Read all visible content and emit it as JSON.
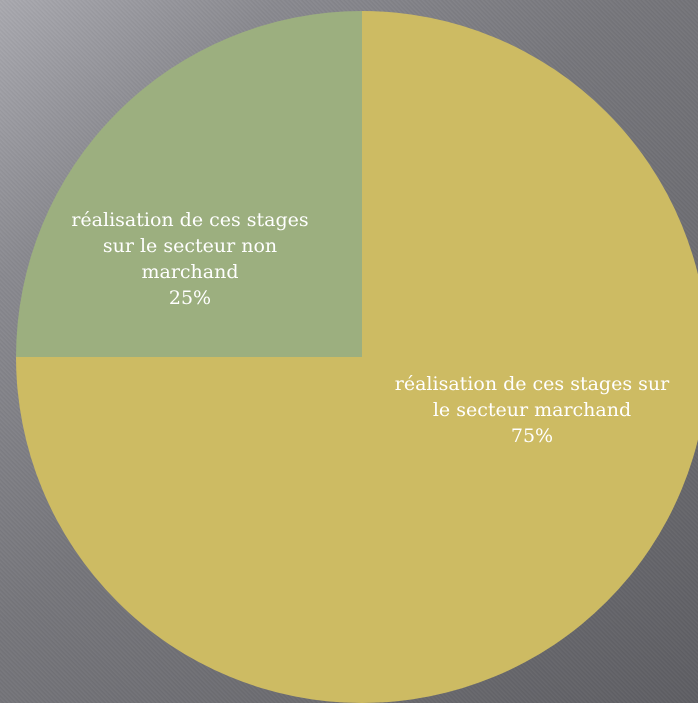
{
  "chart_data": {
    "type": "pie",
    "slices": [
      {
        "label_lines": [
          "réalisation de ces stages sur",
          "le secteur marchand"
        ],
        "percent_label": "75%",
        "value": 75,
        "color": "#cdbb63"
      },
      {
        "label_lines": [
          "réalisation de ces stages",
          "sur le secteur non",
          "marchand"
        ],
        "percent_label": "25%",
        "value": 25,
        "color": "#9caf7f"
      }
    ],
    "legend": "none"
  }
}
